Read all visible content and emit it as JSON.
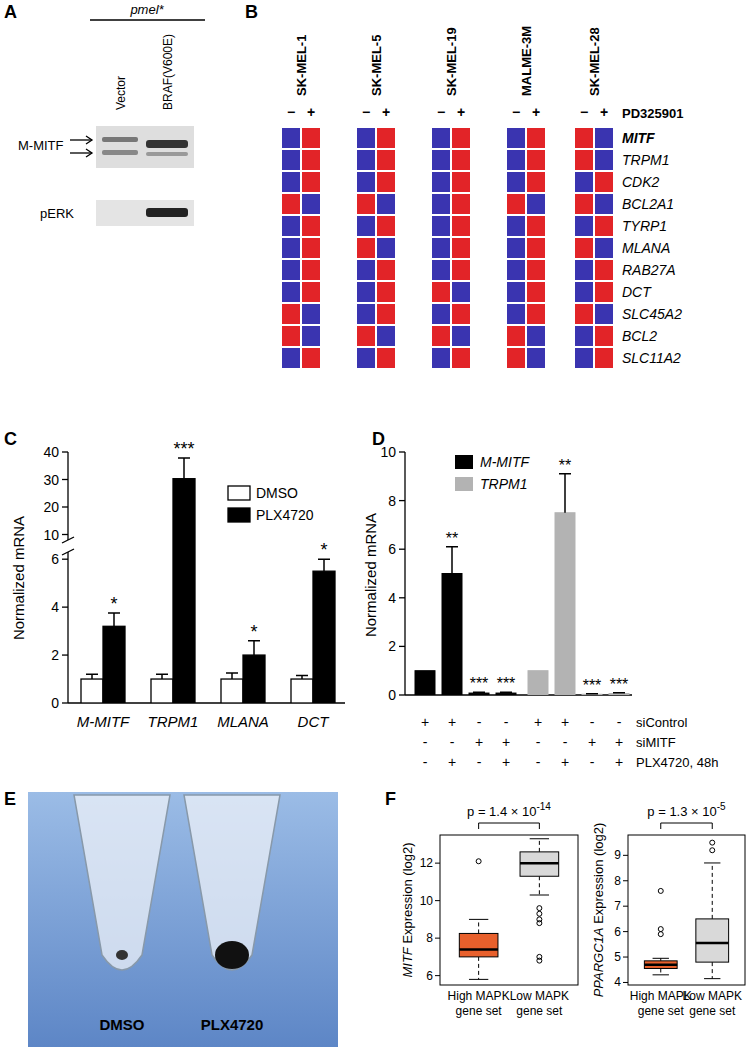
{
  "chart_data": [
    {
      "type": "heatmap",
      "panel_label": "B",
      "columns": [
        "SK-MEL-1",
        "SK-MEL-5",
        "SK-MEL-19",
        "MALME-3M",
        "SK-MEL-28"
      ],
      "treatment": "PD325901",
      "treatment_levels": [
        "−",
        "+"
      ],
      "rows": [
        "MITF",
        "TRPM1",
        "CDK2",
        "BCL2A1",
        "TYRP1",
        "MLANA",
        "RAB27A",
        "DCT",
        "SLC45A2",
        "BCL2",
        "SLC11A2"
      ],
      "zlim": [
        -1,
        1
      ],
      "cells": [
        [
          -1,
          1,
          -1,
          1,
          -1,
          1,
          -1,
          1,
          1,
          -1
        ],
        [
          -1,
          1,
          -1,
          1,
          -1,
          1,
          -1,
          1,
          1,
          -1
        ],
        [
          -1,
          1,
          -1,
          1,
          -1,
          1,
          -1,
          1,
          -1,
          1
        ],
        [
          1,
          -1,
          1,
          -1,
          -1,
          1,
          1,
          -1,
          1,
          -1
        ],
        [
          -1,
          1,
          -1,
          1,
          -1,
          1,
          -1,
          1,
          -1,
          1
        ],
        [
          -1,
          1,
          1,
          -1,
          -1,
          1,
          -1,
          1,
          1,
          -1
        ],
        [
          -1,
          1,
          -1,
          1,
          -1,
          1,
          -1,
          1,
          -1,
          1
        ],
        [
          -1,
          1,
          -1,
          1,
          1,
          -1,
          -1,
          1,
          -1,
          1
        ],
        [
          1,
          -1,
          -1,
          1,
          -1,
          1,
          -1,
          1,
          1,
          -1
        ],
        [
          1,
          -1,
          1,
          -1,
          1,
          -1,
          1,
          -1,
          -1,
          1
        ],
        [
          -1,
          1,
          -1,
          1,
          -1,
          1,
          1,
          -1,
          -1,
          1
        ]
      ]
    },
    {
      "type": "bar",
      "panel_label": "C",
      "ylabel": "Normalized mRNA",
      "categories": [
        "M-MITF",
        "TRPM1",
        "MLANA",
        "DCT"
      ],
      "ylim": [
        0,
        40
      ],
      "y_break": [
        6.3,
        8
      ],
      "yticks": [
        0,
        2,
        4,
        6,
        10,
        20,
        30,
        40
      ],
      "legend": "top-right",
      "series": [
        {
          "name": "DMSO",
          "color": "#ffffff",
          "values": [
            1,
            1,
            1,
            1
          ],
          "errors": [
            0.2,
            0.2,
            0.25,
            0.15
          ]
        },
        {
          "name": "PLX4720",
          "color": "#000000",
          "values": [
            3.2,
            30.3,
            2.0,
            5.5
          ],
          "errors": [
            0.55,
            7.5,
            0.6,
            0.5
          ],
          "annotations": [
            "*",
            "***",
            "*",
            "*"
          ]
        }
      ]
    },
    {
      "type": "bar",
      "panel_label": "D",
      "ylabel": "Normalized mRNA",
      "ylim": [
        0,
        10
      ],
      "yticks": [
        0,
        2,
        4,
        6,
        8,
        10
      ],
      "legend": "top",
      "series": [
        {
          "name": "M-MITF",
          "color": "#000000",
          "values": [
            1,
            5.0,
            0.08,
            0.08
          ],
          "errors": [
            null,
            1.1,
            0.03,
            0.03
          ],
          "annotations": [
            null,
            "**",
            "***",
            "***"
          ]
        },
        {
          "name": "TRPM1",
          "color": "#b3b3b3",
          "values": [
            1,
            7.5,
            0.03,
            0.06
          ],
          "errors": [
            null,
            1.6,
            0.02,
            0.03
          ],
          "annotations": [
            null,
            "**",
            "***",
            "***"
          ]
        }
      ],
      "conditions": [
        {
          "name": "siControl",
          "values": [
            "+",
            "+",
            "-",
            "-",
            "+",
            "+",
            "-",
            "-"
          ]
        },
        {
          "name": "siMITF",
          "values": [
            "-",
            "-",
            "+",
            "+",
            "-",
            "-",
            "+",
            "+"
          ]
        },
        {
          "name": "PLX4720, 48h",
          "values": [
            "-",
            "+",
            "-",
            "+",
            "-",
            "+",
            "-",
            "+"
          ]
        }
      ]
    },
    {
      "type": "box",
      "panel_label": "F",
      "ylabel": "MITF Expression (log2)",
      "categories": [
        "High MAPK gene set",
        "Low MAPK gene set"
      ],
      "colors": [
        "#e8602c",
        "#d9d9d9"
      ],
      "ylim": [
        5.5,
        13.5
      ],
      "yticks": [
        6,
        8,
        10,
        12
      ],
      "annotation": {
        "text": "p = 1.4 × 10",
        "exponent": "-14"
      },
      "boxes": [
        {
          "min": 5.8,
          "q1": 7.0,
          "median": 7.4,
          "q3": 8.25,
          "max": 9.0,
          "outliers": [
            12.1
          ]
        },
        {
          "min": 10.3,
          "q1": 11.3,
          "median": 12.0,
          "q3": 12.6,
          "max": 13.3,
          "outliers": [
            9.6,
            9.3,
            9.0,
            8.8,
            7.0,
            6.8
          ]
        }
      ]
    },
    {
      "type": "box",
      "ylabel": "PPARGC1A Expression (log2)",
      "categories": [
        "High MAPK gene set",
        "Low MAPK gene set"
      ],
      "colors": [
        "#e8602c",
        "#d9d9d9"
      ],
      "ylim": [
        3.9,
        9.8
      ],
      "yticks": [
        4,
        5,
        6,
        7,
        8,
        9
      ],
      "annotation": {
        "text": "p = 1.3 × 10",
        "exponent": "-5"
      },
      "boxes": [
        {
          "min": 4.3,
          "q1": 4.55,
          "median": 4.7,
          "q3": 4.85,
          "max": 4.95,
          "outliers": [
            5.9,
            6.1,
            7.6
          ]
        },
        {
          "min": 4.15,
          "q1": 4.8,
          "median": 5.55,
          "q3": 6.5,
          "max": 8.7,
          "outliers": [
            9.2,
            9.5
          ]
        }
      ]
    }
  ],
  "blot": {
    "panel_label": "A",
    "header": "pmel*",
    "lanes": [
      "Vector",
      "BRAF(V600E)"
    ],
    "bands": [
      "M-MITF",
      "pERK"
    ]
  },
  "photo": {
    "panel_label": "E",
    "tubes": [
      "DMSO",
      "PLX4720"
    ]
  }
}
